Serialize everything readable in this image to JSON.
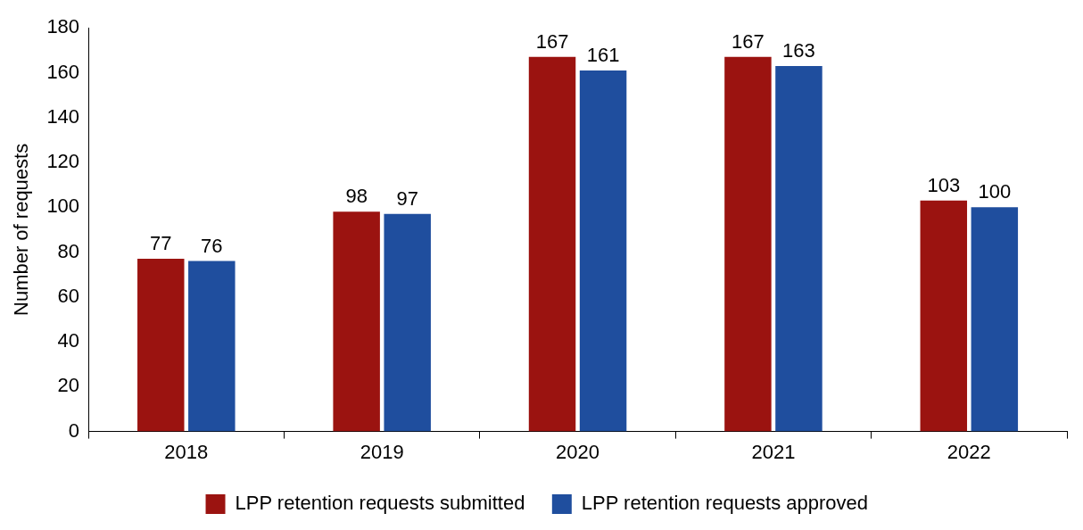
{
  "chart_data": {
    "type": "bar",
    "ylabel": "Number of requests",
    "categories": [
      "2018",
      "2019",
      "2020",
      "2021",
      "2022"
    ],
    "series": [
      {
        "name": "LPP retention requests submitted",
        "color": "#9b1310",
        "values": [
          77,
          98,
          167,
          167,
          103
        ]
      },
      {
        "name": "LPP retention requests approved",
        "color": "#1f4e9e",
        "values": [
          76,
          97,
          161,
          163,
          100
        ]
      }
    ],
    "ylim": [
      0,
      180
    ],
    "yticks": [
      0,
      20,
      40,
      60,
      80,
      100,
      120,
      140,
      160,
      180
    ],
    "grid": false,
    "legend": "bottom",
    "data_labels": true
  }
}
